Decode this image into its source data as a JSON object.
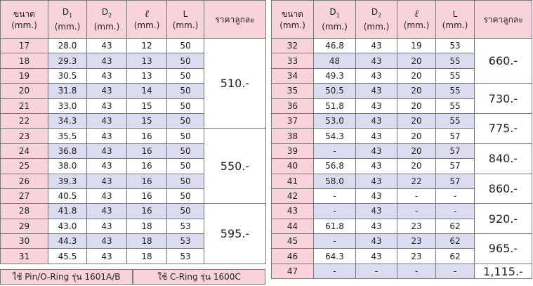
{
  "header": [
    {
      "label": "ขนาด",
      "unit": "(mm.)"
    },
    {
      "label": "D",
      "sub": "1",
      "unit": "(mm.)"
    },
    {
      "label": "D",
      "sub": "2",
      "unit": "(mm.)"
    },
    {
      "label": "ℓ",
      "unit": "(mm.)"
    },
    {
      "label": "L",
      "unit": "(mm.)"
    },
    {
      "label": "ราคาลูกละ"
    }
  ],
  "tables": [
    {
      "groups": [
        {
          "price": "510.-",
          "rows": [
            [
              "17",
              "28.0",
              "43",
              "12",
              "50"
            ],
            [
              "18",
              "29.3",
              "43",
              "13",
              "50"
            ],
            [
              "19",
              "30.5",
              "43",
              "13",
              "50"
            ],
            [
              "20",
              "31.8",
              "43",
              "14",
              "50"
            ],
            [
              "21",
              "33.0",
              "43",
              "15",
              "50"
            ],
            [
              "22",
              "34.3",
              "43",
              "15",
              "50"
            ]
          ]
        },
        {
          "price": "550.-",
          "rows": [
            [
              "23",
              "35.5",
              "43",
              "16",
              "50"
            ],
            [
              "24",
              "36.8",
              "43",
              "16",
              "50"
            ],
            [
              "25",
              "38.0",
              "43",
              "16",
              "50"
            ],
            [
              "26",
              "39.3",
              "43",
              "16",
              "50"
            ],
            [
              "27",
              "40.5",
              "43",
              "16",
              "50"
            ]
          ]
        },
        {
          "price": "595.-",
          "rows": [
            [
              "28",
              "41.8",
              "43",
              "16",
              "50"
            ],
            [
              "29",
              "43.0",
              "43",
              "18",
              "53"
            ],
            [
              "30",
              "44.3",
              "43",
              "18",
              "53"
            ],
            [
              "31",
              "45.5",
              "43",
              "18",
              "53"
            ]
          ]
        }
      ]
    },
    {
      "groups": [
        {
          "price": "660.-",
          "rows": [
            [
              "32",
              "46.8",
              "43",
              "19",
              "53"
            ],
            [
              "33",
              "48",
              "43",
              "20",
              "55"
            ],
            [
              "34",
              "49.3",
              "43",
              "20",
              "55"
            ]
          ]
        },
        {
          "price": "730.-",
          "rows": [
            [
              "35",
              "50.5",
              "43",
              "20",
              "55"
            ],
            [
              "36",
              "51.8",
              "43",
              "20",
              "55"
            ]
          ]
        },
        {
          "price": "775.-",
          "rows": [
            [
              "37",
              "53.0",
              "43",
              "20",
              "55"
            ],
            [
              "38",
              "54.3",
              "43",
              "20",
              "57"
            ]
          ]
        },
        {
          "price": "840.-",
          "rows": [
            [
              "39",
              "-",
              "43",
              "20",
              "57"
            ],
            [
              "40",
              "56.8",
              "43",
              "20",
              "57"
            ]
          ]
        },
        {
          "price": "860.-",
          "rows": [
            [
              "41",
              "58.0",
              "43",
              "22",
              "57"
            ],
            [
              "42",
              "-",
              "43",
              "-",
              "-"
            ]
          ]
        },
        {
          "price": "920.-",
          "rows": [
            [
              "43",
              "-",
              "43",
              "-",
              "-"
            ],
            [
              "44",
              "61.8",
              "43",
              "23",
              "62"
            ]
          ]
        },
        {
          "price": "965.-",
          "rows": [
            [
              "45",
              "-",
              "43",
              "23",
              "62"
            ],
            [
              "46",
              "64.3",
              "43",
              "23",
              "62"
            ]
          ]
        },
        {
          "price": "1,115.-",
          "rows": [
            [
              "47",
              "-",
              "-",
              "-",
              "-"
            ]
          ]
        }
      ]
    }
  ],
  "notes": [
    "ใช้ Pin/O-Ring รุ่น 1601A/B",
    "ใช้ C-Ring รุ่น 1600C"
  ]
}
